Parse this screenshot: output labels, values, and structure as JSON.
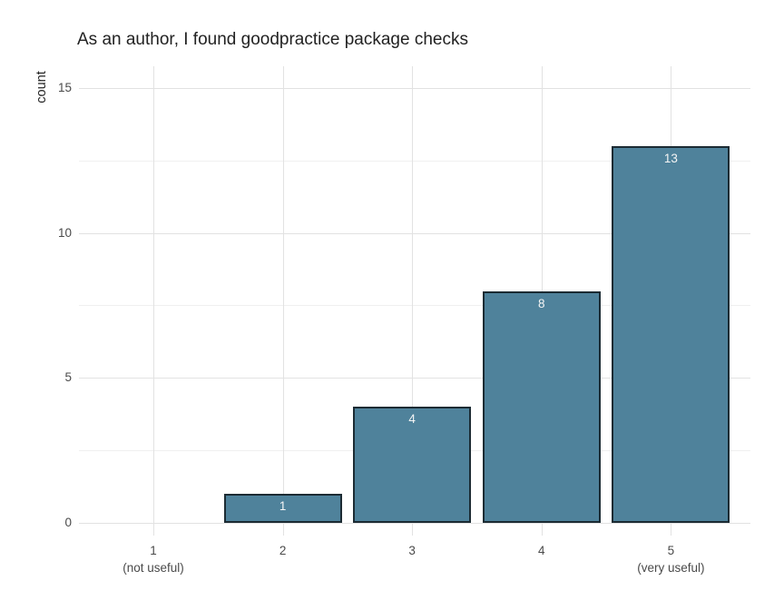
{
  "chart_data": {
    "type": "bar",
    "title": "As an author, I found goodpractice package checks",
    "xlabel": "",
    "ylabel": "count",
    "categories": [
      "1",
      "2",
      "3",
      "4",
      "5"
    ],
    "category_sublabels": [
      "(not useful)",
      "",
      "",
      "",
      "(very useful)"
    ],
    "values": [
      0,
      1,
      4,
      8,
      13
    ],
    "bar_labels": [
      "",
      "1",
      "4",
      "8",
      "13"
    ],
    "ylim": [
      0,
      15.75
    ],
    "yticks": [
      0,
      5,
      10,
      15
    ],
    "yticks_minor": [
      2.5,
      7.5,
      12.5
    ],
    "grid": true,
    "legend": "none",
    "colors": {
      "bar_fill": "#4f829b",
      "bar_border": "#1c2b33",
      "grid_major": "#e2e2e2",
      "grid_minor": "#f0f0f0",
      "tick_label": "#4a4a4a",
      "title": "#222222",
      "bar_label": "#f5f5f5",
      "background": "#ffffff"
    }
  }
}
